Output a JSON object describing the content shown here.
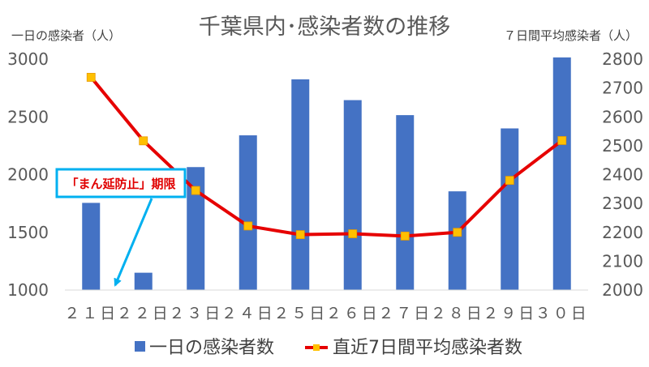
{
  "chart_data": {
    "type": "bar",
    "title": "千葉県内･感染者数の推移",
    "categories": [
      "２１日",
      "２２日",
      "２３日",
      "２４日",
      "２５日",
      "２６日",
      "２７日",
      "２８日",
      "２９日",
      "３０日"
    ],
    "series": [
      {
        "name": "一日の感染者数",
        "type": "bar",
        "axis": "left",
        "color": "#4472c4",
        "values": [
          1755,
          1150,
          2065,
          2340,
          2825,
          2645,
          2515,
          1855,
          2400,
          3015
        ]
      },
      {
        "name": "直近7日間平均感染者数",
        "type": "line",
        "axis": "right",
        "color": "#e60000",
        "marker_color": "#ffc000",
        "values": [
          2737,
          2517,
          2345,
          2222,
          2192,
          2195,
          2187,
          2200,
          2380,
          2518
        ]
      }
    ],
    "ylabel_left": "一日の感染者（人）",
    "ylabel_right": "７日間平均感染者（人）",
    "ylim_left": [
      1000,
      3000
    ],
    "ylim_right": [
      2000,
      2800
    ],
    "yticks_left": [
      1000,
      1500,
      2000,
      2500,
      3000
    ],
    "yticks_right": [
      2000,
      2100,
      2200,
      2300,
      2400,
      2500,
      2600,
      2700,
      2800
    ],
    "grid": false,
    "legend": "bottom",
    "annotation": {
      "text": "「まん延防止」期限",
      "target_category": "２２日"
    }
  }
}
